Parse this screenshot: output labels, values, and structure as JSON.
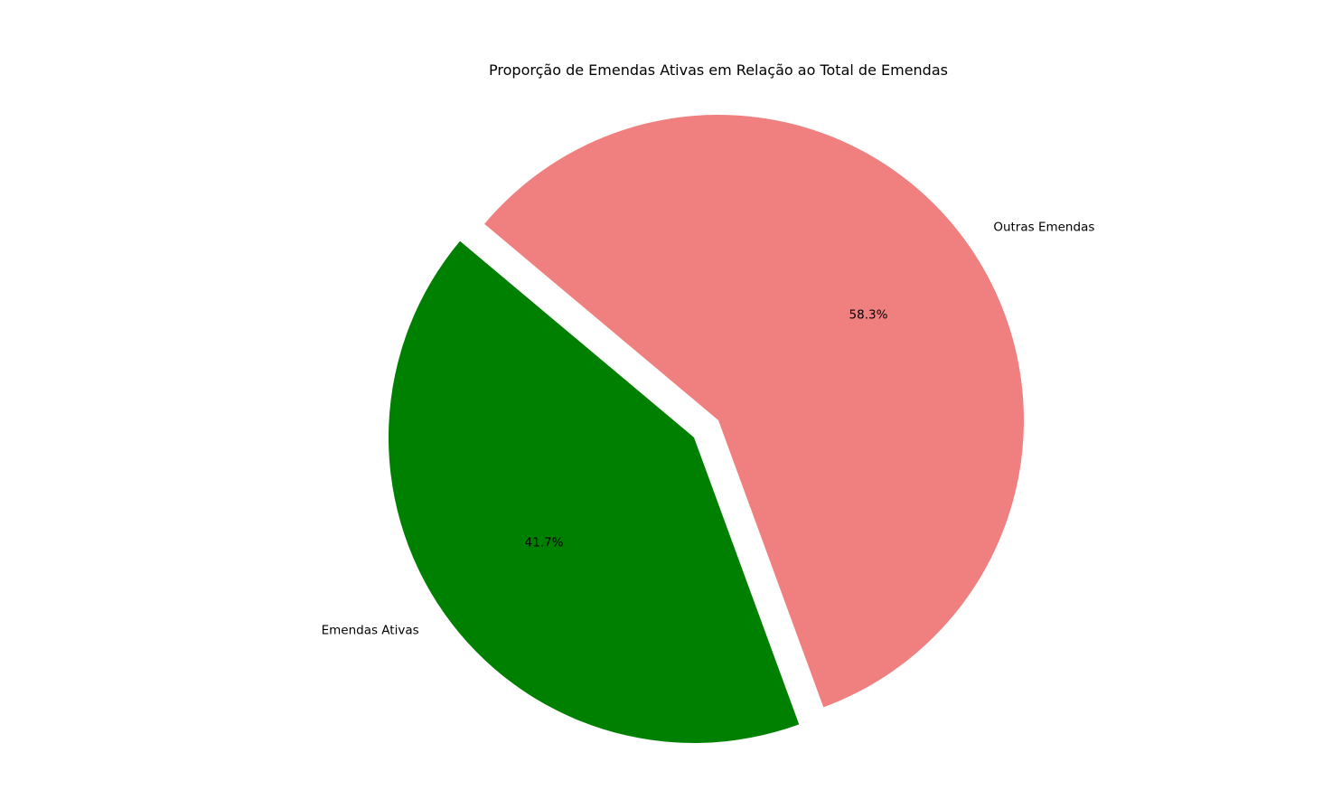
{
  "chart_data": {
    "type": "pie",
    "title": "Proporção de Emendas Ativas em Relação ao Total de Emendas",
    "slices": [
      {
        "label": "Emendas Ativas",
        "value": 41.7,
        "pct_label": "41.7%",
        "color": "#008000",
        "exploded": true
      },
      {
        "label": "Outras Emendas",
        "value": 58.3,
        "pct_label": "58.3%",
        "color": "#f08080",
        "exploded": false
      }
    ],
    "start_angle_deg": 140,
    "counterclockwise": true,
    "legend": "none"
  }
}
